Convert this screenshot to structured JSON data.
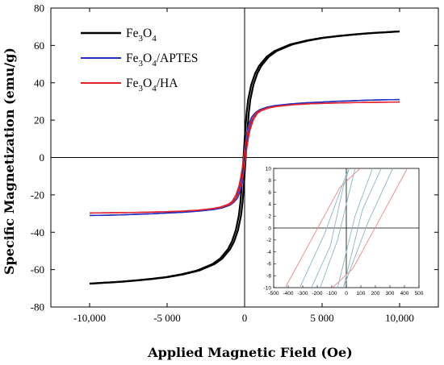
{
  "chart_data": [
    {
      "type": "line",
      "xlabel": "Applied Magnetic Field (Oe)",
      "ylabel": "Specific Magnetization (emu/g)",
      "xlim": [
        -12500,
        12500
      ],
      "ylim": [
        -80,
        80
      ],
      "xticks": [
        -10000,
        -5000,
        0,
        5000,
        10000
      ],
      "xtick_labels": [
        "-10,000",
        "-5 000",
        "0",
        "5 000",
        "10,000"
      ],
      "yticks": [
        -80,
        -60,
        -40,
        -20,
        0,
        20,
        40,
        60,
        80
      ],
      "ytick_labels": [
        "-80",
        "-60",
        "-40",
        "-20",
        "0",
        "20",
        "40",
        "60",
        "80"
      ],
      "grid": false,
      "legend_position": "top-left",
      "series": [
        {
          "name_parts": [
            [
              "Fe",
              false
            ],
            [
              "3",
              true
            ],
            [
              "O",
              false
            ],
            [
              "4",
              true
            ]
          ],
          "color": "#000000",
          "hysteresis_width_Oe": 70,
          "x": [
            0,
            100,
            200,
            300,
            500,
            750,
            1000,
            1500,
            2000,
            3000,
            4000,
            5000,
            6000,
            7000,
            8000,
            9000,
            10000
          ],
          "y": [
            0,
            13,
            24,
            31,
            39,
            45,
            49,
            54,
            57,
            60.5,
            62.5,
            64,
            65,
            65.8,
            66.5,
            67,
            67.5
          ]
        },
        {
          "name_parts": [
            [
              "Fe",
              false
            ],
            [
              "3",
              true
            ],
            [
              "O",
              false
            ],
            [
              "4",
              true
            ],
            [
              "/APTES",
              false
            ]
          ],
          "color": "#1f2fbf",
          "hysteresis_width_Oe": 60,
          "x": [
            0,
            100,
            200,
            300,
            500,
            750,
            1000,
            1500,
            2000,
            3000,
            4000,
            5000,
            6000,
            7000,
            8000,
            9000,
            10000
          ],
          "y": [
            0,
            7,
            13,
            17,
            21.5,
            24,
            25.5,
            27,
            27.8,
            28.7,
            29.3,
            29.7,
            30.1,
            30.4,
            30.7,
            30.9,
            31
          ]
        },
        {
          "name_parts": [
            [
              "Fe",
              false
            ],
            [
              "3",
              true
            ],
            [
              "O",
              false
            ],
            [
              "4",
              true
            ],
            [
              "/HA",
              false
            ]
          ],
          "color": "#e2232f",
          "hysteresis_width_Oe": 60,
          "x": [
            0,
            100,
            200,
            300,
            500,
            750,
            1000,
            1500,
            2000,
            3000,
            4000,
            5000,
            6000,
            7000,
            8000,
            9000,
            10000
          ],
          "y": [
            0,
            6,
            11,
            15,
            20,
            23.5,
            25,
            26.5,
            27.3,
            28.2,
            28.7,
            29,
            29.2,
            29.4,
            29.5,
            29.6,
            29.7
          ]
        }
      ]
    },
    {
      "type": "line",
      "role": "inset",
      "xlim": [
        -500,
        500
      ],
      "ylim": [
        -10,
        10
      ],
      "xticks": [
        -500,
        -400,
        -300,
        -200,
        -100,
        0,
        100,
        200,
        300,
        400,
        500
      ],
      "xtick_labels": [
        "-500",
        "-400",
        "-300",
        "-200",
        "-100",
        "0",
        "100",
        "200",
        "300",
        "400",
        "500"
      ],
      "yticks": [
        -10,
        -8,
        -6,
        -4,
        -2,
        0,
        2,
        4,
        6,
        8,
        10
      ],
      "ytick_labels": [
        "-10",
        "-8",
        "-6",
        "-4",
        "-2",
        "0",
        "2",
        "4",
        "6",
        "8",
        "10"
      ],
      "grid": false,
      "series": [
        {
          "color": "#e88a8a",
          "segments": [
            [
              [
                -420,
                -10
              ],
              [
                -45,
                6.8
              ],
              [
                95,
                10
              ]
            ],
            [
              [
                -95,
                -10
              ],
              [
                45,
                -6.8
              ],
              [
                420,
                10
              ]
            ]
          ]
        },
        {
          "color": "#8fb4c4",
          "segments": [
            [
              [
                -240,
                -10
              ],
              [
                -110,
                -3
              ],
              [
                -20,
                7
              ],
              [
                20,
                10
              ]
            ],
            [
              [
                -20,
                -10
              ],
              [
                110,
                3
              ],
              [
                240,
                10
              ]
            ]
          ]
        },
        {
          "color": "#8fb4c4",
          "segments": [
            [
              [
                -320,
                -10
              ],
              [
                -150,
                -1
              ],
              [
                0,
                9
              ],
              [
                20,
                10
              ]
            ],
            [
              [
                -20,
                -10
              ],
              [
                150,
                1
              ],
              [
                320,
                10
              ]
            ]
          ]
        },
        {
          "color": "#8fb4c4",
          "segments": [
            [
              [
                -180,
                -10
              ],
              [
                -60,
                -2
              ],
              [
                60,
                10
              ]
            ],
            [
              [
                -60,
                -10
              ],
              [
                60,
                2
              ],
              [
                180,
                10
              ]
            ]
          ]
        }
      ]
    }
  ]
}
